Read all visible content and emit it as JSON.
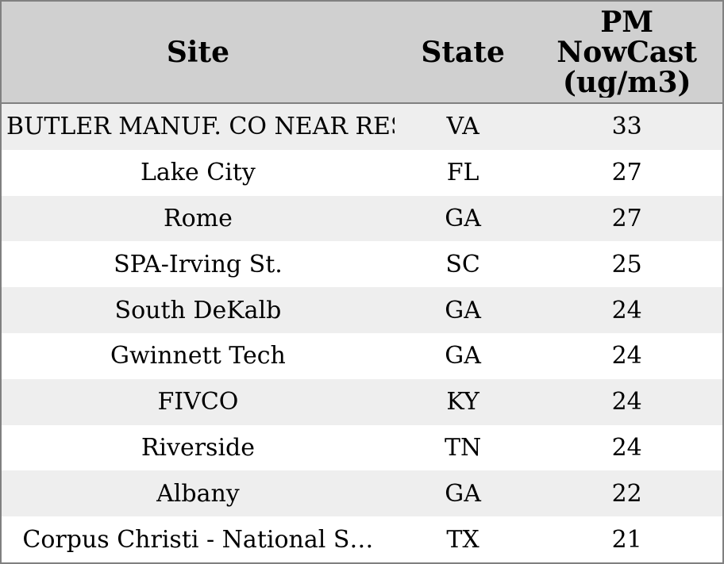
{
  "colors": {
    "border": "#808080",
    "header_background": "#d0d0d0",
    "row_stripe_background": "#eeeeee",
    "row_background": "#ffffff",
    "text": "#000000"
  },
  "table": {
    "header": {
      "site": "Site",
      "state": "State",
      "pm_lines": [
        "PM",
        "NowCast",
        "(ug/m3)"
      ]
    },
    "rows": [
      {
        "site": "BUTLER MANUF. CO NEAR REST",
        "state": "VA",
        "value": "33"
      },
      {
        "site": "Lake City",
        "state": "FL",
        "value": "27"
      },
      {
        "site": "Rome",
        "state": "GA",
        "value": "27"
      },
      {
        "site": "SPA-Irving St.",
        "state": "SC",
        "value": "25"
      },
      {
        "site": "South DeKalb",
        "state": "GA",
        "value": "24"
      },
      {
        "site": "Gwinnett Tech",
        "state": "GA",
        "value": "24"
      },
      {
        "site": "FIVCO",
        "state": "KY",
        "value": "24"
      },
      {
        "site": "Riverside",
        "state": "TN",
        "value": "24"
      },
      {
        "site": "Albany",
        "state": "GA",
        "value": "22"
      },
      {
        "site": "Corpus Christi - National S…",
        "state": "TX",
        "value": "21"
      }
    ]
  }
}
